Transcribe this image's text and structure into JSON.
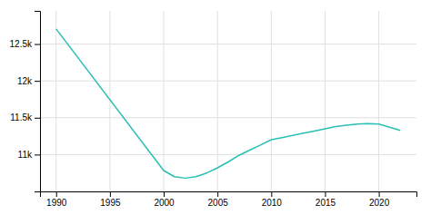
{
  "chart_data": {
    "type": "line",
    "x": [
      1990,
      2000,
      2001,
      2002,
      2003,
      2004,
      2005,
      2006,
      2007,
      2008,
      2009,
      2010,
      2011,
      2012,
      2013,
      2014,
      2015,
      2016,
      2017,
      2018,
      2019,
      2020,
      2022
    ],
    "values": [
      12705,
      10783,
      10700,
      10680,
      10700,
      10750,
      10820,
      10900,
      10990,
      11060,
      11130,
      11202,
      11230,
      11260,
      11290,
      11320,
      11350,
      11380,
      11400,
      11415,
      11420,
      11415,
      11327
    ],
    "color": "#2abfb3",
    "xlim": [
      1988.5,
      2023.5
    ],
    "xticks": [
      1990,
      1995,
      2000,
      2005,
      2010,
      2015,
      2020
    ],
    "ylim": [
      10500,
      12950
    ],
    "yticks": [
      {
        "value": 11000,
        "label": "11k"
      },
      {
        "value": 11500,
        "label": "11.5k"
      },
      {
        "value": 12000,
        "label": "12k"
      },
      {
        "value": 12500,
        "label": "12.5k"
      }
    ],
    "grid": true
  }
}
